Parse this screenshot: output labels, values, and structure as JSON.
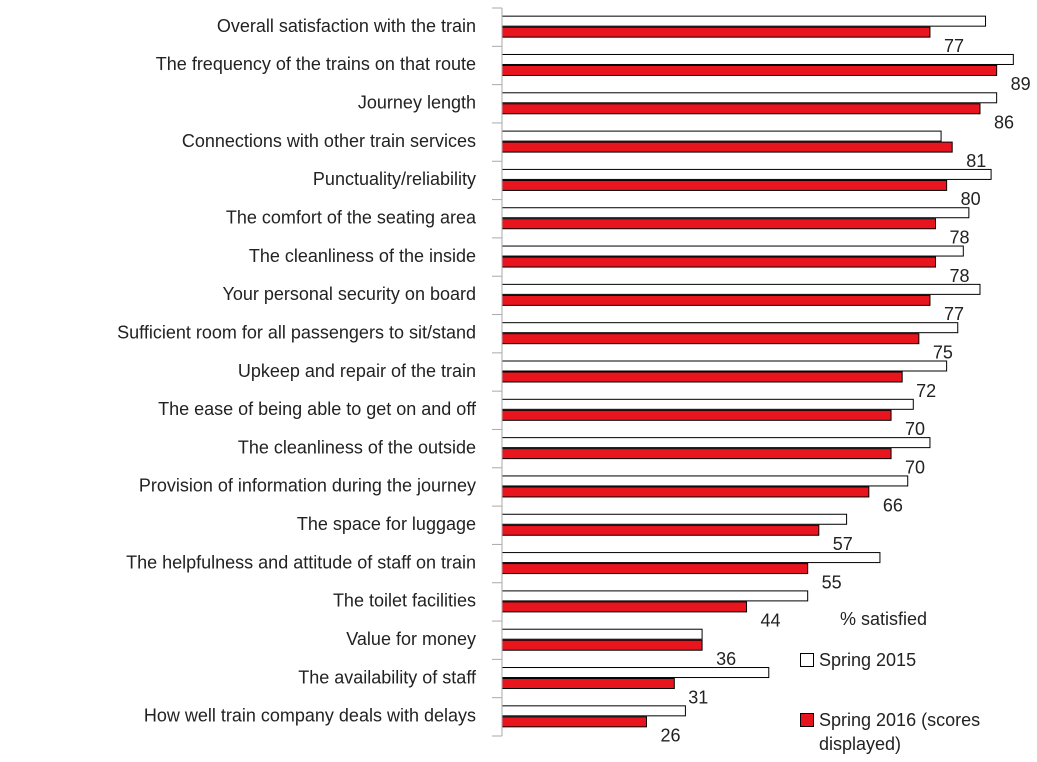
{
  "chart_data": {
    "type": "hbar",
    "categories": [
      "Overall satisfaction with the train",
      "The frequency of the trains on that route",
      "Journey length",
      "Connections with other train services",
      "Punctuality/reliability",
      "The comfort of the seating area",
      "The cleanliness of the inside",
      "Your personal security on board",
      "Sufficient room for all passengers to sit/stand",
      "Upkeep and repair of the train",
      "The ease of being able to get on and off",
      "The cleanliness of the outside",
      "Provision of information during the journey",
      "The space for luggage",
      "The helpfulness and attitude of staff on train",
      "The toilet facilities",
      "Value for money",
      "The availability of staff",
      "How well train company deals with delays"
    ],
    "series": [
      {
        "name": "Spring 2015",
        "color": "#ffffff",
        "values": [
          87,
          92,
          89,
          79,
          88,
          84,
          83,
          86,
          82,
          80,
          74,
          77,
          73,
          62,
          68,
          55,
          36,
          48,
          33
        ]
      },
      {
        "name": "Spring 2016 (scores displayed)",
        "color": "#e8141e",
        "values": [
          77,
          89,
          86,
          81,
          80,
          78,
          78,
          77,
          75,
          72,
          70,
          70,
          66,
          57,
          55,
          44,
          36,
          31,
          26
        ],
        "show_values": true
      }
    ],
    "legend_title": "% satisfied",
    "xlim": [
      0,
      95
    ]
  }
}
